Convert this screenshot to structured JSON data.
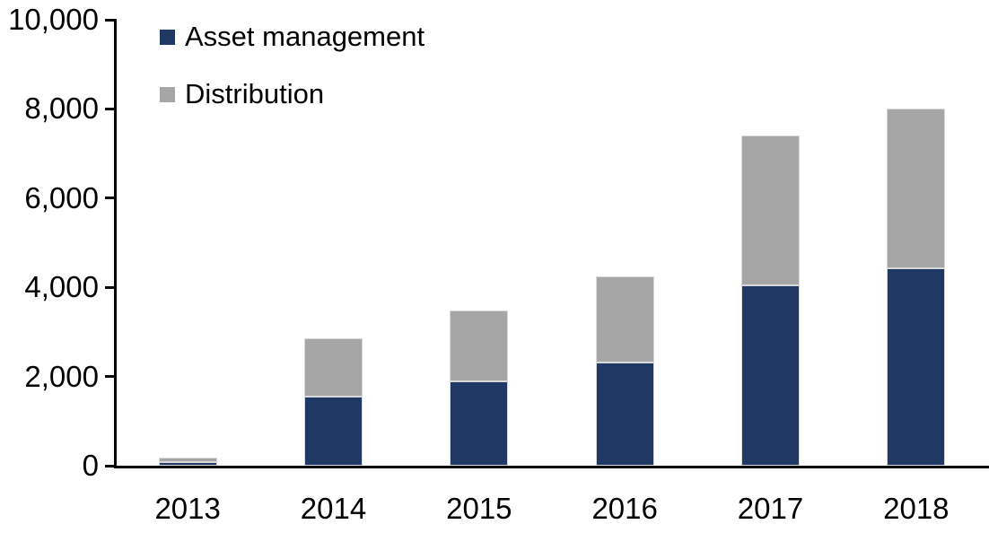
{
  "chart_data": {
    "type": "bar",
    "stacked": true,
    "title": "",
    "xlabel": "",
    "ylabel": "",
    "categories": [
      "2013",
      "2014",
      "2015",
      "2016",
      "2017",
      "2018"
    ],
    "series": [
      {
        "name": "Asset management",
        "color": "#1F3864",
        "values": [
          90,
          1540,
          1890,
          2310,
          4040,
          4420
        ]
      },
      {
        "name": "Distribution",
        "color": "#A6A6A6",
        "values": [
          100,
          1310,
          1600,
          1940,
          3360,
          3580
        ]
      }
    ],
    "totals": [
      190,
      2850,
      3490,
      4250,
      7400,
      8000
    ],
    "ylim": [
      0,
      10000
    ],
    "yticks": [
      {
        "label": "0",
        "value": 0
      },
      {
        "label": "2,000",
        "value": 2000
      },
      {
        "label": "4,000",
        "value": 4000
      },
      {
        "label": "6,000",
        "value": 6000
      },
      {
        "label": "8,000",
        "value": 8000
      },
      {
        "label": "10,000",
        "value": 10000
      }
    ],
    "grid": false,
    "legend_position": "top-left-inside",
    "axis_color": "#000000"
  }
}
